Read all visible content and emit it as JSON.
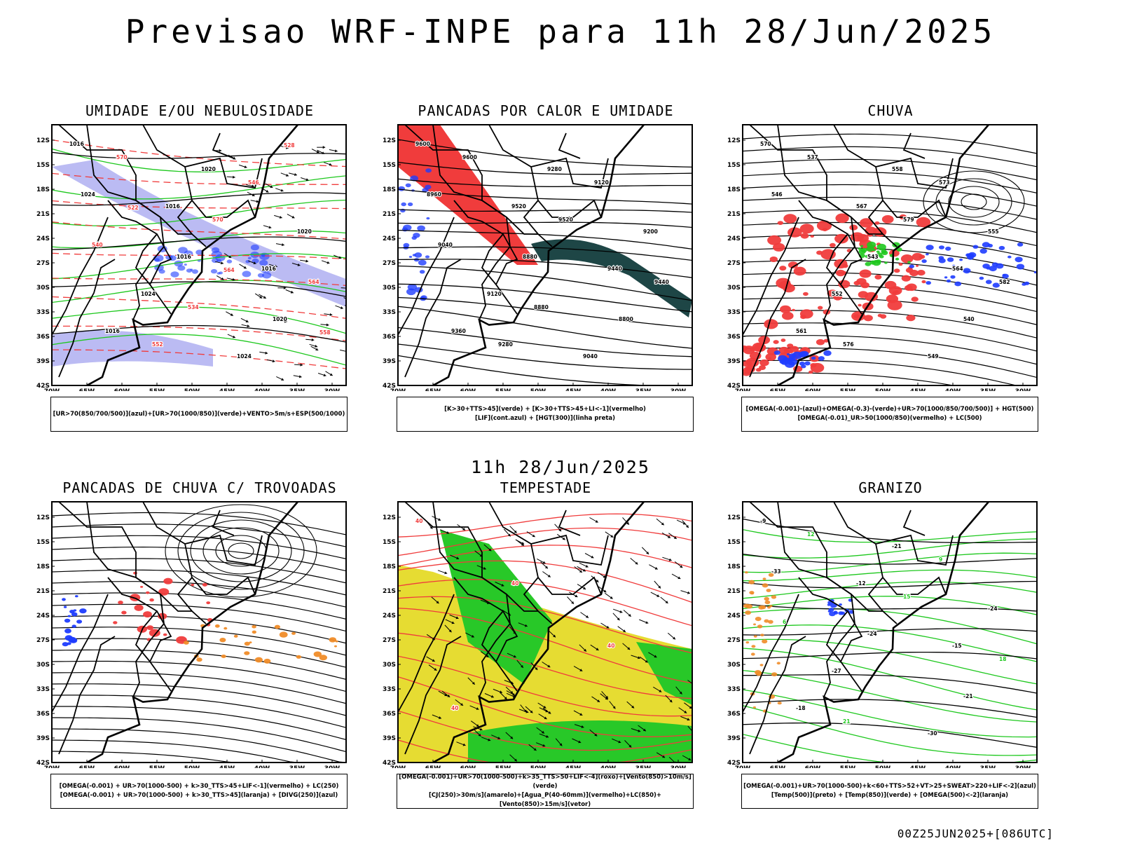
{
  "title": "Previsao WRF-INPE  para 11h 28/Jun/2025",
  "subtitle": "11h 28/Jun/2025",
  "footer": "00Z25JUN2025+[086UTC]",
  "axes": {
    "y_ticks": [
      "12S",
      "15S",
      "18S",
      "21S",
      "24S",
      "27S",
      "30S",
      "33S",
      "36S",
      "39S",
      "42S"
    ],
    "x_ticks": [
      "70W",
      "65W",
      "60W",
      "55W",
      "50W",
      "45W",
      "40W",
      "35W",
      "30W"
    ]
  },
  "colors": {
    "red": "#f03c3c",
    "green": "#1ec81e",
    "blue": "#1e3cff",
    "lavender": "#aaaaf0",
    "yellow": "#e6dc32",
    "orange": "#f08c28",
    "teal": "#1e4646"
  },
  "panels": [
    {
      "title": "UMIDADE E/OU NEBULOSIDADE",
      "legend": [
        "[UR>70(850/700/500)](azul)+[UR>70(1000/850)](verde)+VENTO>5m/s+ESP(500/1000)"
      ],
      "labels": [
        "1016",
        "1016",
        "1016",
        "1016",
        "1020",
        "1020",
        "1024",
        "1024",
        "1024",
        "1016",
        "1020",
        "570",
        "570",
        "564",
        "552",
        "546",
        "540",
        "534",
        "528",
        "522",
        "564",
        "558"
      ]
    },
    {
      "title": "PANCADAS POR CALOR E UMIDADE",
      "legend": [
        "[K>30+TTS>45](verde) + [K>30+TTS>45+LI<-1](vermelho)",
        "[LIF](cont.azul) + [HGT(300)](linha preta)"
      ],
      "labels": [
        "9600",
        "9520",
        "9440",
        "9360",
        "9280",
        "9200",
        "9120",
        "9040",
        "8960",
        "8880",
        "8800",
        "9600",
        "9520",
        "9440",
        "9280",
        "9120",
        "9040",
        "8880"
      ]
    },
    {
      "title": "CHUVA",
      "legend": [
        "[OMEGA(-0.001)-(azul)+OMEGA(-0.3)-(verde)+UR>70(1000/850/700/500)] + HGT(500)",
        "[OMEGA(-0.01)_UR>50(1000/850)(vermelho) + LC(500)"
      ],
      "labels": [
        "570",
        "567",
        "564",
        "561",
        "558",
        "555",
        "552",
        "549",
        "546",
        "543",
        "540",
        "537",
        "579",
        "582",
        "576",
        "573"
      ]
    },
    {
      "title": "PANCADAS DE CHUVA C/ TROVOADAS",
      "legend": [
        "[OMEGA(-0.001) + UR>70(1000-500) + k>30_TTS>45+LIF<-1](vermelho) + LC(250)",
        "[OMEGA(-0.001) + UR>70(1000-500) + k>30_TTS>45](laranja) + [DIVG(250)](azul)"
      ],
      "labels": []
    },
    {
      "title": "TEMPESTADE",
      "legend": [
        "[OMEGA(-0.001)+UR>70(1000-500)+k>35_TTS>50+LIF<-4](roxo)+[Vento(850)>10m/s](verde)",
        "[CJ(250)>30m/s](amarelo)+[Agua_P(40-60mm)](vermelho)+LC(850)+[Vento(850)>15m/s](vetor)"
      ],
      "labels": [
        "40",
        "40",
        "40",
        "40"
      ]
    },
    {
      "title": "GRANIZO",
      "legend": [
        "[OMEGA(-0.001)+UR>70(1000-500)+k<60+TTS>52+VT>25+SWEAT>220+LIF<-2](azul)",
        "[Temp(500)](preto) + [Temp(850)](verde) + [OMEGA(500)<-2](laranja)"
      ],
      "labels": [
        "-9",
        "-12",
        "-15",
        "-18",
        "-21",
        "-24",
        "-27",
        "-30",
        "-33",
        "-24",
        "-21",
        "12",
        "15",
        "18",
        "21",
        "9",
        "6"
      ]
    }
  ]
}
